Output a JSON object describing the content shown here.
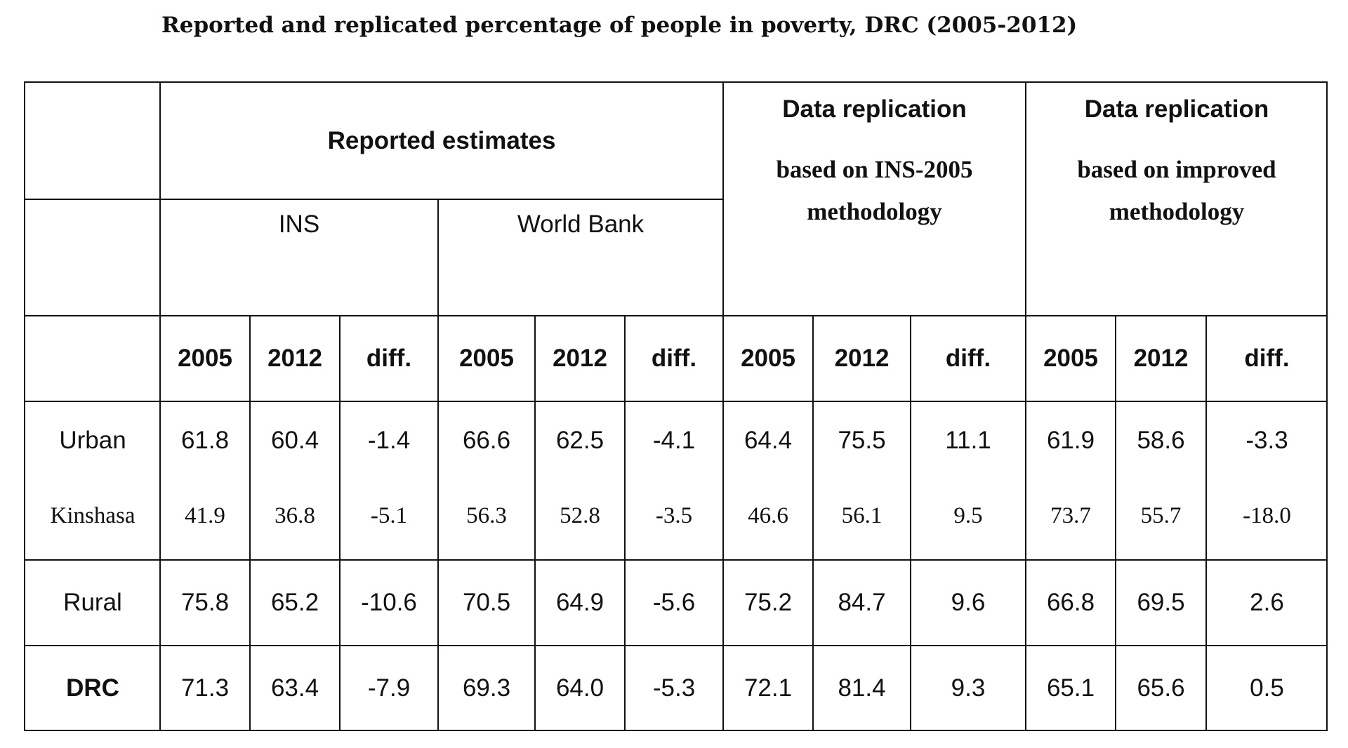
{
  "title": "Reported and replicated percentage of people in poverty, DRC (2005-2012)",
  "groups": {
    "reported": "Reported estimates",
    "replication_ins": {
      "line1": "Data replication",
      "line2": "based on INS-2005",
      "line3": "methodology"
    },
    "replication_improved": {
      "line1": "Data replication",
      "line2": "based on improved",
      "line3": "methodology"
    }
  },
  "subgroups": {
    "ins": "INS",
    "world_bank": "World Bank"
  },
  "column_headers": [
    "2005",
    "2012",
    "diff.",
    "2005",
    "2012",
    "diff.",
    "2005",
    "2012",
    "diff.",
    "2005",
    "2012",
    "diff."
  ],
  "rows": [
    {
      "label": "Urban",
      "values": [
        "61.8",
        "60.4",
        "-1.4",
        "66.6",
        "62.5",
        "-4.1",
        "64.4",
        "75.5",
        "11.1",
        "61.9",
        "58.6",
        "-3.3"
      ]
    },
    {
      "label": "Kinshasa",
      "values": [
        "41.9",
        "36.8",
        "-5.1",
        "56.3",
        "52.8",
        "-3.5",
        "46.6",
        "56.1",
        "9.5",
        "73.7",
        "55.7",
        "-18.0"
      ]
    },
    {
      "label": "Rural",
      "values": [
        "75.8",
        "65.2",
        "-10.6",
        "70.5",
        "64.9",
        "-5.6",
        "75.2",
        "84.7",
        "9.6",
        "66.8",
        "69.5",
        "2.6"
      ]
    },
    {
      "label": "DRC",
      "values": [
        "71.3",
        "63.4",
        "-7.9",
        "69.3",
        "64.0",
        "-5.3",
        "72.1",
        "81.4",
        "9.3",
        "65.1",
        "65.6",
        "0.5"
      ]
    }
  ]
}
